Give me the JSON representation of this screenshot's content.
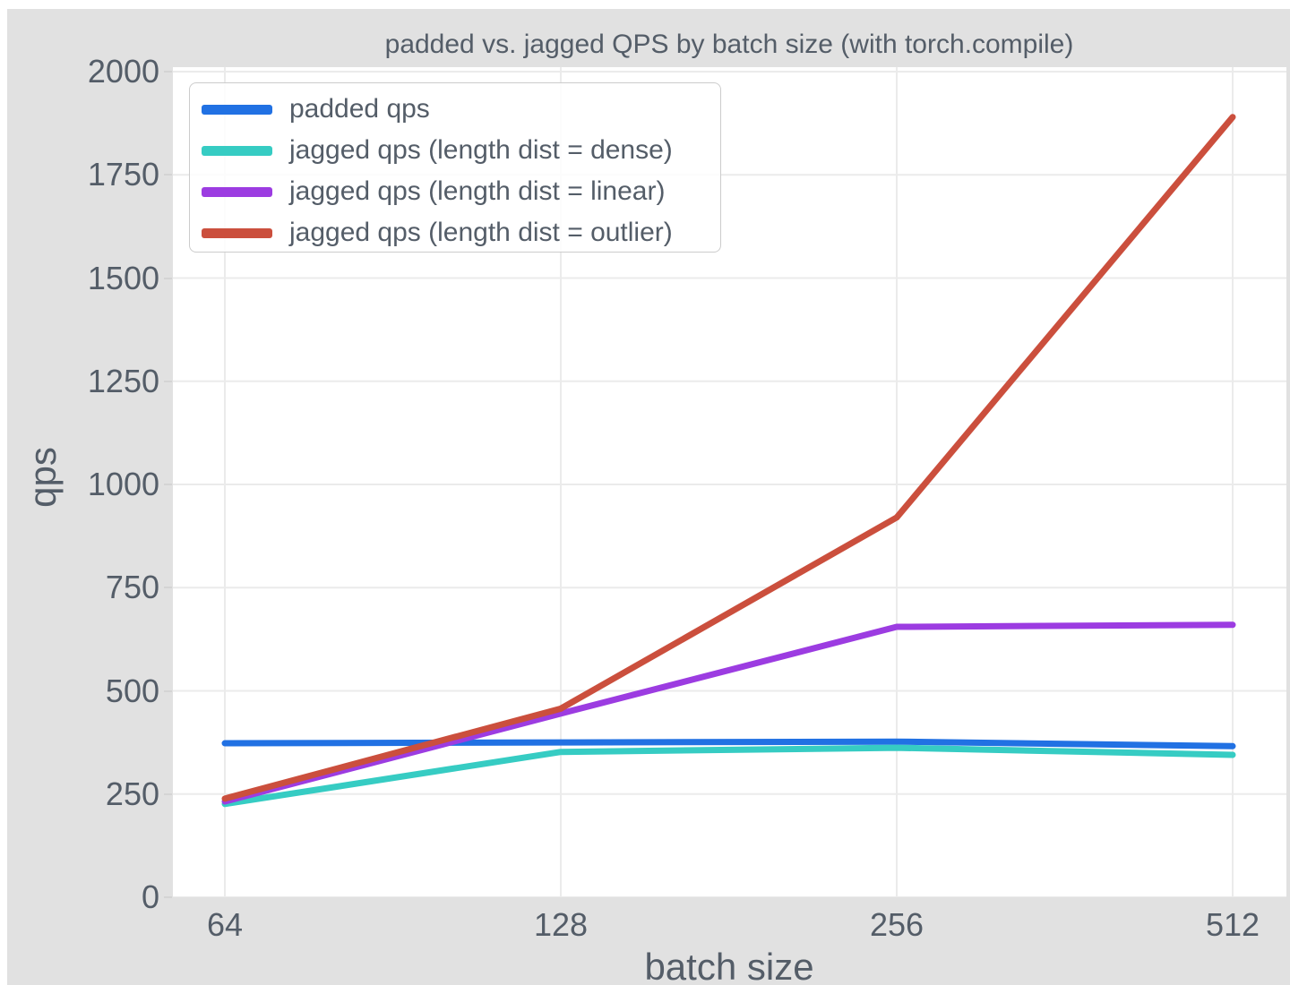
{
  "chart_data": {
    "type": "line",
    "title": "padded vs. jagged QPS by batch size (with torch.compile)",
    "xlabel": "batch size",
    "ylabel": "qps",
    "x": [
      64,
      128,
      256,
      512
    ],
    "x_scale": "log2",
    "xtick_labels": [
      "64",
      "128",
      "256",
      "512"
    ],
    "yticks": [
      0,
      250,
      500,
      750,
      1000,
      1250,
      1500,
      1750,
      2000
    ],
    "ylim": [
      0,
      2010
    ],
    "grid": true,
    "legend_position": "upper left",
    "series": [
      {
        "name": "padded qps",
        "color": "#2171e3",
        "values": [
          373,
          375,
          377,
          366
        ]
      },
      {
        "name": "jagged qps (length dist = dense)",
        "color": "#36ccc3",
        "values": [
          226,
          352,
          362,
          345
        ]
      },
      {
        "name": "jagged qps (length dist = linear)",
        "color": "#9c3ce1",
        "values": [
          232,
          445,
          655,
          660
        ]
      },
      {
        "name": "jagged qps (length dist = outlier)",
        "color": "#cb4f3d",
        "values": [
          239,
          457,
          920,
          1890
        ]
      }
    ],
    "colors": {
      "figure_background": "#e1e1e1",
      "plot_background": "#ffffff",
      "gridline": "#ebebeb",
      "text": "#545d68"
    }
  }
}
